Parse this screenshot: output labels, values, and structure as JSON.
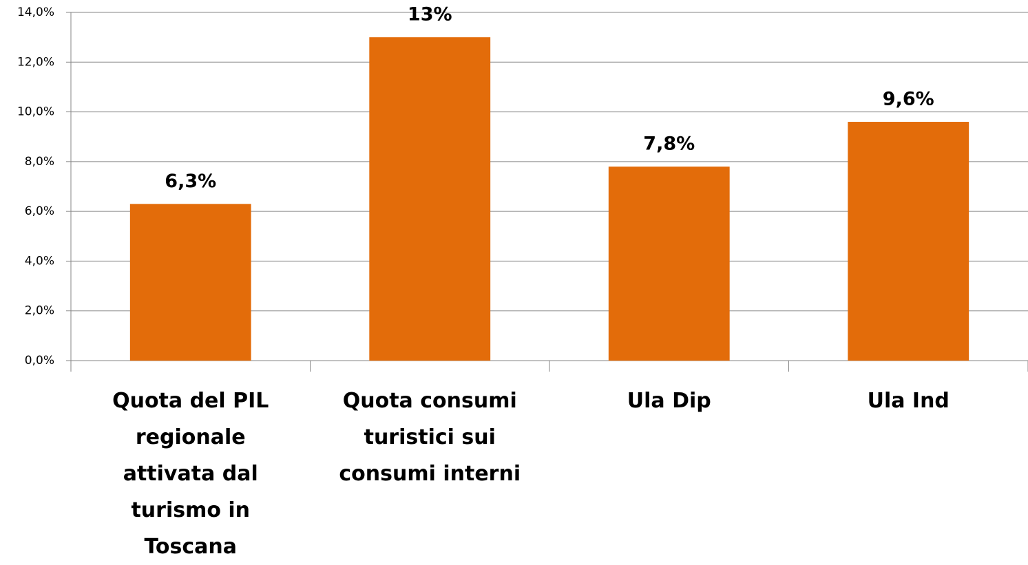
{
  "chart_data": {
    "type": "bar",
    "categories": [
      "Quota del PIL regionale attivata dal turismo in Toscana",
      "Quota consumi turistici sui consumi interni",
      "Ula Dip",
      "Ula Ind"
    ],
    "values": [
      6.3,
      13,
      7.8,
      9.6
    ],
    "value_labels": [
      "6,3%",
      "13%",
      "7,8%",
      "9,6%"
    ],
    "color": "#e36c0a",
    "ylim": [
      0,
      14
    ],
    "yticks": [
      {
        "value": 0,
        "label": "0,0%"
      },
      {
        "value": 2,
        "label": "2,0%"
      },
      {
        "value": 4,
        "label": "4,0%"
      },
      {
        "value": 6,
        "label": "6,0%"
      },
      {
        "value": 8,
        "label": "8,0%"
      },
      {
        "value": 10,
        "label": "10,0%"
      },
      {
        "value": 12,
        "label": "12,0%"
      },
      {
        "value": 14,
        "label": "14,0%"
      }
    ],
    "grid": true
  }
}
